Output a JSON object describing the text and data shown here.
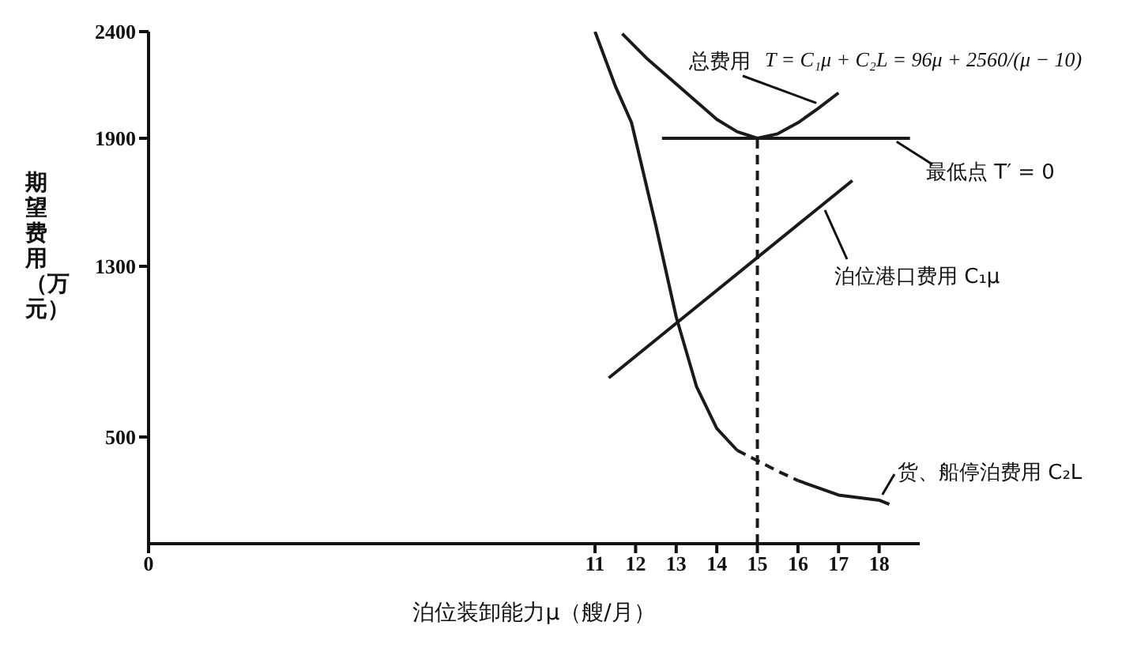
{
  "chart_data": {
    "type": "line",
    "xlabel": "泊位装卸能力μ（艘/月）",
    "ylabel": "期望费用（万元）",
    "xlim": [
      0,
      19
    ],
    "xticks": [
      0,
      11,
      12,
      13,
      14,
      15,
      16,
      17,
      18
    ],
    "ylim": [
      0,
      2400
    ],
    "yticks": [
      500,
      1300,
      1900,
      2400
    ],
    "marker": "none",
    "line_style": "solid",
    "series": [
      {
        "color": "#1a1a1a",
        "x": [
          11.67,
          12.3,
          13,
          14,
          14.5,
          15,
          15.5,
          16,
          16.5,
          17
        ],
        "values": [
          2390,
          2270,
          2155,
          1989,
          1931,
          1900,
          1921,
          1973,
          2040,
          2113
        ]
      },
      {
        "color": "#1a1a1a",
        "x": [
          11.34,
          17.34
        ],
        "values": [
          777,
          1702
        ]
      },
      {
        "color": "#1a1a1a",
        "x": [
          11,
          11.5,
          11.9,
          12.5,
          13,
          13.5,
          14,
          14.5
        ],
        "values": [
          2400,
          2145,
          1973,
          1490,
          1063,
          737,
          540,
          438
        ]
      },
      {
        "color": "#1a1a1a",
        "line_style": "dashed",
        "x": [
          14.5,
          15,
          15.5,
          16
        ],
        "values": [
          438,
          389,
          340,
          296
        ]
      },
      {
        "color": "#1a1a1a",
        "x": [
          16,
          17,
          18,
          18.25
        ],
        "values": [
          296,
          228,
          204,
          185
        ]
      },
      {
        "color": "#1a1a1a",
        "x": [
          12.65,
          18.76
        ],
        "values": [
          1900,
          1900
        ]
      },
      {
        "color": "#1a1a1a",
        "line_style": "dashed",
        "x": [
          15,
          15
        ],
        "values": [
          0,
          1900
        ]
      }
    ],
    "annotations": [
      {
        "text": "总费用",
        "x": 16.6,
        "y": 2055
      },
      "T = C₁μ + C₂L = 96μ + 2560/(μ − 10)",
      {
        "text": "最低点 T′ = 0",
        "x": 18.3,
        "y": 1900
      },
      {
        "text": "泊位港口费用 C₁μ",
        "x": 16.6,
        "y": 1590
      },
      {
        "text": "货、船停泊费用 C₂L",
        "x": 18,
        "y": 204
      }
    ]
  }
}
